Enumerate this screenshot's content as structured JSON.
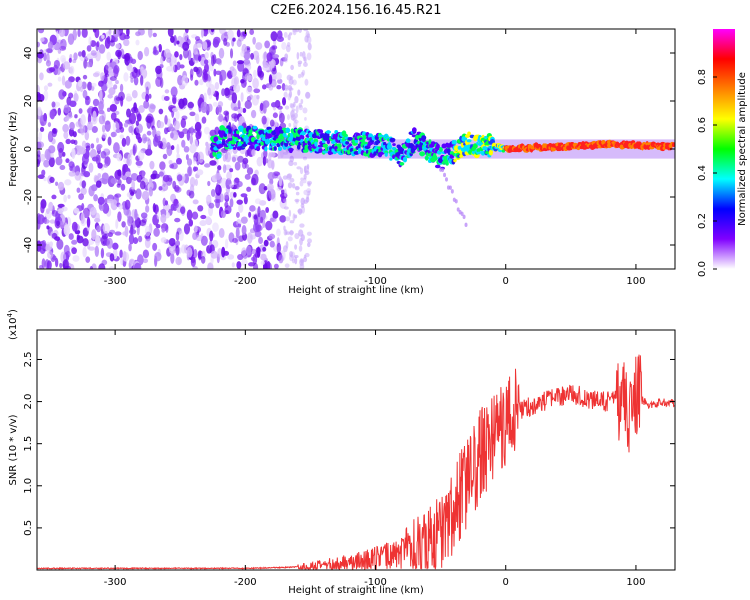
{
  "page_title": "C2E6.2024.156.16.45.R21",
  "chart_data": [
    {
      "type": "heatmap",
      "title": "",
      "xlabel": "Height of straight line (km)",
      "ylabel": "Frequency (Hz)",
      "xlim": [
        -360,
        130
      ],
      "ylim": [
        -50,
        50
      ],
      "x_ticks": [
        -300,
        -200,
        -100,
        0,
        100
      ],
      "y_ticks": [
        -40,
        -20,
        0,
        20,
        40
      ],
      "colorbar": {
        "label": "Normalized spectral amplitude",
        "range": [
          0.0,
          1.0
        ],
        "ticks": [
          0.0,
          0.2,
          0.4,
          0.6,
          0.8
        ],
        "colors": [
          "#ffffff",
          "#8000ff",
          "#0000ff",
          "#00ffff",
          "#00ff00",
          "#ffff00",
          "#ff8000",
          "#ff0000",
          "#ff00ff"
        ]
      },
      "features": {
        "noise_region_x": [
          -360,
          -170
        ],
        "noise_fade_x": [
          -170,
          -150
        ],
        "signal_track": [
          {
            "x": -220,
            "y": 5
          },
          {
            "x": -170,
            "y": 4
          },
          {
            "x": -140,
            "y": 3
          },
          {
            "x": -110,
            "y": 2
          },
          {
            "x": -90,
            "y": 1
          },
          {
            "x": -80,
            "y": -3
          },
          {
            "x": -70,
            "y": 4
          },
          {
            "x": -50,
            "y": -4
          },
          {
            "x": -30,
            "y": 2
          },
          {
            "x": -10,
            "y": 1
          },
          {
            "x": 0,
            "y": 0
          },
          {
            "x": 40,
            "y": 1
          },
          {
            "x": 80,
            "y": 2
          },
          {
            "x": 130,
            "y": 1
          }
        ]
      }
    },
    {
      "type": "line",
      "title": "",
      "xlabel": "Height of straight line (km)",
      "ylabel": "SNR (10 * v/v)",
      "y_multiplier": "(x10",
      "y_multiplier_exp": "4",
      "y_multiplier_close": ")",
      "xlim": [
        -360,
        130
      ],
      "ylim": [
        0,
        2.85
      ],
      "x_ticks": [
        -300,
        -200,
        -100,
        0,
        100
      ],
      "y_ticks": [
        0.5,
        1.0,
        1.5,
        2.0,
        2.5
      ],
      "y_tick_labels": [
        "0.5",
        "1.0",
        "1.5",
        "2.0",
        "2.5"
      ],
      "series": [
        {
          "color": "#ee3333",
          "x": [
            -360,
            -300,
            -250,
            -200,
            -170,
            -140,
            -120,
            -100,
            -80,
            -60,
            -50,
            -40,
            -30,
            -20,
            -10,
            0,
            10,
            20,
            30,
            40,
            50,
            60,
            70,
            80,
            90,
            95,
            100,
            110,
            120,
            130
          ],
          "y": [
            0.02,
            0.02,
            0.02,
            0.02,
            0.03,
            0.05,
            0.08,
            0.12,
            0.18,
            0.3,
            0.45,
            0.7,
            1.0,
            1.35,
            1.6,
            1.75,
            1.9,
            1.95,
            2.0,
            2.05,
            2.1,
            2.05,
            2.0,
            2.0,
            2.05,
            1.8,
            2.1,
            1.95,
            2.0,
            1.97
          ]
        }
      ]
    }
  ]
}
